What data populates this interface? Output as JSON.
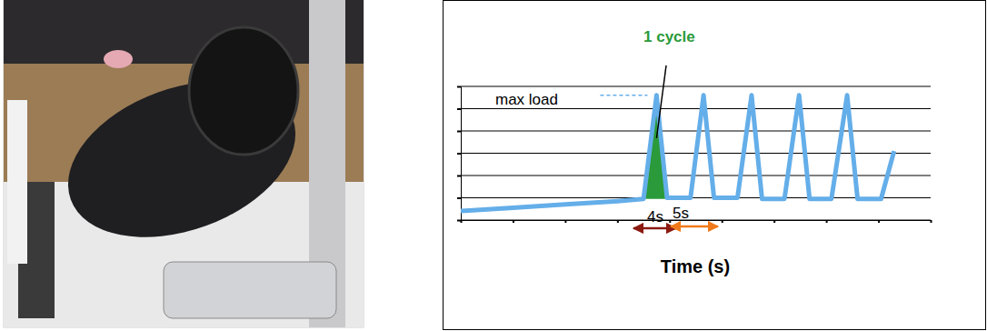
{
  "chart_data": {
    "type": "line",
    "x_label": "Time (s)",
    "x": [
      0,
      10,
      20,
      30,
      35,
      37.5,
      39.5,
      44,
      46.5,
      48.5,
      53,
      55.7,
      57.7,
      62,
      64.8,
      66.8,
      71,
      74,
      76,
      80.5,
      83
    ],
    "values": [
      0.41,
      0.55,
      0.7,
      0.85,
      0.95,
      5.6,
      1.0,
      1.0,
      5.6,
      1.0,
      1.0,
      5.6,
      0.95,
      0.95,
      5.6,
      0.95,
      0.95,
      5.6,
      0.95,
      0.95,
      3.1
    ],
    "color": "#64aee9",
    "line_style": "solid",
    "xlim": [
      0,
      90
    ],
    "xticks": [
      0,
      10,
      20,
      30,
      40,
      50,
      60,
      70,
      80,
      90
    ],
    "ylim": [
      0,
      6
    ],
    "yticks": [
      0,
      1,
      2,
      3,
      4,
      5,
      6
    ],
    "grid": true,
    "tick_labels": false,
    "annotations": [
      "max load",
      "1 cycle",
      "4s",
      "5s"
    ]
  }
}
